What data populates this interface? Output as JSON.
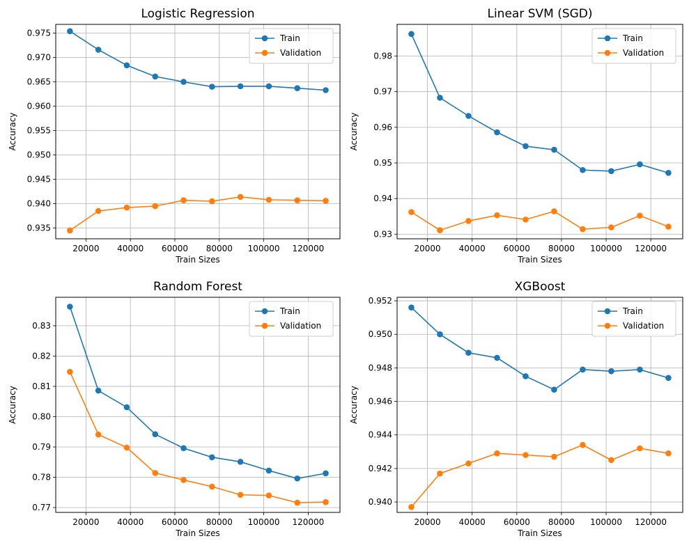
{
  "figure": {
    "legend_location": "top-right",
    "grid": true
  },
  "chart_data": [
    {
      "type": "line",
      "title": "Logistic Regression",
      "xlabel": "Train Sizes",
      "ylabel": "Accuracy",
      "x": [
        12788,
        25576,
        38364,
        51152,
        63940,
        76728,
        89516,
        102304,
        115092,
        127880
      ],
      "xlim": [
        6400,
        134300
      ],
      "xticks": [
        20000,
        40000,
        60000,
        80000,
        100000,
        120000
      ],
      "ylim": [
        0.9328,
        0.9768
      ],
      "yticks": [
        0.935,
        0.94,
        0.945,
        0.95,
        0.955,
        0.96,
        0.965,
        0.97,
        0.975
      ],
      "ytick_decimals": 3,
      "series": [
        {
          "name": "Train",
          "color": "#1f77b4",
          "values": [
            0.9754,
            0.9716,
            0.9684,
            0.9661,
            0.965,
            0.964,
            0.9641,
            0.9641,
            0.9637,
            0.9633
          ]
        },
        {
          "name": "Validation",
          "color": "#ff7f0e",
          "values": [
            0.9345,
            0.9385,
            0.9392,
            0.9395,
            0.9407,
            0.9405,
            0.9414,
            0.9408,
            0.9407,
            0.9406
          ]
        }
      ]
    },
    {
      "type": "line",
      "title": "Linear SVM (SGD)",
      "xlabel": "Train Sizes",
      "ylabel": "Accuracy",
      "x": [
        12788,
        25576,
        38364,
        51152,
        63940,
        76728,
        89516,
        102304,
        115092,
        127880
      ],
      "xlim": [
        6400,
        134300
      ],
      "xticks": [
        20000,
        40000,
        60000,
        80000,
        100000,
        120000
      ],
      "ylim": [
        0.9287,
        0.9889
      ],
      "yticks": [
        0.93,
        0.94,
        0.95,
        0.96,
        0.97,
        0.98
      ],
      "ytick_decimals": 2,
      "series": [
        {
          "name": "Train",
          "color": "#1f77b4",
          "values": [
            0.9862,
            0.9683,
            0.9632,
            0.9586,
            0.9547,
            0.9537,
            0.948,
            0.9477,
            0.9496,
            0.9472
          ]
        },
        {
          "name": "Validation",
          "color": "#ff7f0e",
          "values": [
            0.9362,
            0.9311,
            0.9337,
            0.9353,
            0.9341,
            0.9364,
            0.9314,
            0.9319,
            0.9352,
            0.9321
          ]
        }
      ]
    },
    {
      "type": "line",
      "title": "Random Forest",
      "xlabel": "Train Sizes",
      "ylabel": "Accuracy",
      "x": [
        12788,
        25576,
        38364,
        51152,
        63940,
        76728,
        89516,
        102304,
        115092,
        127880
      ],
      "xlim": [
        6400,
        134300
      ],
      "xticks": [
        20000,
        40000,
        60000,
        80000,
        100000,
        120000
      ],
      "ylim": [
        0.7684,
        0.8394
      ],
      "yticks": [
        0.77,
        0.78,
        0.79,
        0.8,
        0.81,
        0.82,
        0.83
      ],
      "ytick_decimals": 2,
      "series": [
        {
          "name": "Train",
          "color": "#1f77b4",
          "values": [
            0.8363,
            0.8086,
            0.8031,
            0.7942,
            0.7896,
            0.7866,
            0.7851,
            0.7822,
            0.7796,
            0.7813
          ]
        },
        {
          "name": "Validation",
          "color": "#ff7f0e",
          "values": [
            0.8148,
            0.7941,
            0.7898,
            0.7814,
            0.7791,
            0.7769,
            0.7742,
            0.774,
            0.7716,
            0.7718
          ]
        }
      ]
    },
    {
      "type": "line",
      "title": "XGBoost",
      "xlabel": "Train Sizes",
      "ylabel": "Accuracy",
      "x": [
        12788,
        25576,
        38364,
        51152,
        63940,
        76728,
        89516,
        102304,
        115092,
        127880
      ],
      "xlim": [
        6400,
        134300
      ],
      "xticks": [
        20000,
        40000,
        60000,
        80000,
        100000,
        120000
      ],
      "ylim": [
        0.93938,
        0.95221
      ],
      "yticks": [
        0.94,
        0.942,
        0.944,
        0.946,
        0.948,
        0.95,
        0.952
      ],
      "ytick_decimals": 3,
      "series": [
        {
          "name": "Train",
          "color": "#1f77b4",
          "values": [
            0.9516,
            0.95,
            0.9489,
            0.9486,
            0.9475,
            0.9467,
            0.9479,
            0.9478,
            0.9479,
            0.9474
          ]
        },
        {
          "name": "Validation",
          "color": "#ff7f0e",
          "values": [
            0.9397,
            0.9417,
            0.9423,
            0.9429,
            0.9428,
            0.9427,
            0.9434,
            0.9425,
            0.9432,
            0.9429
          ]
        }
      ]
    }
  ]
}
